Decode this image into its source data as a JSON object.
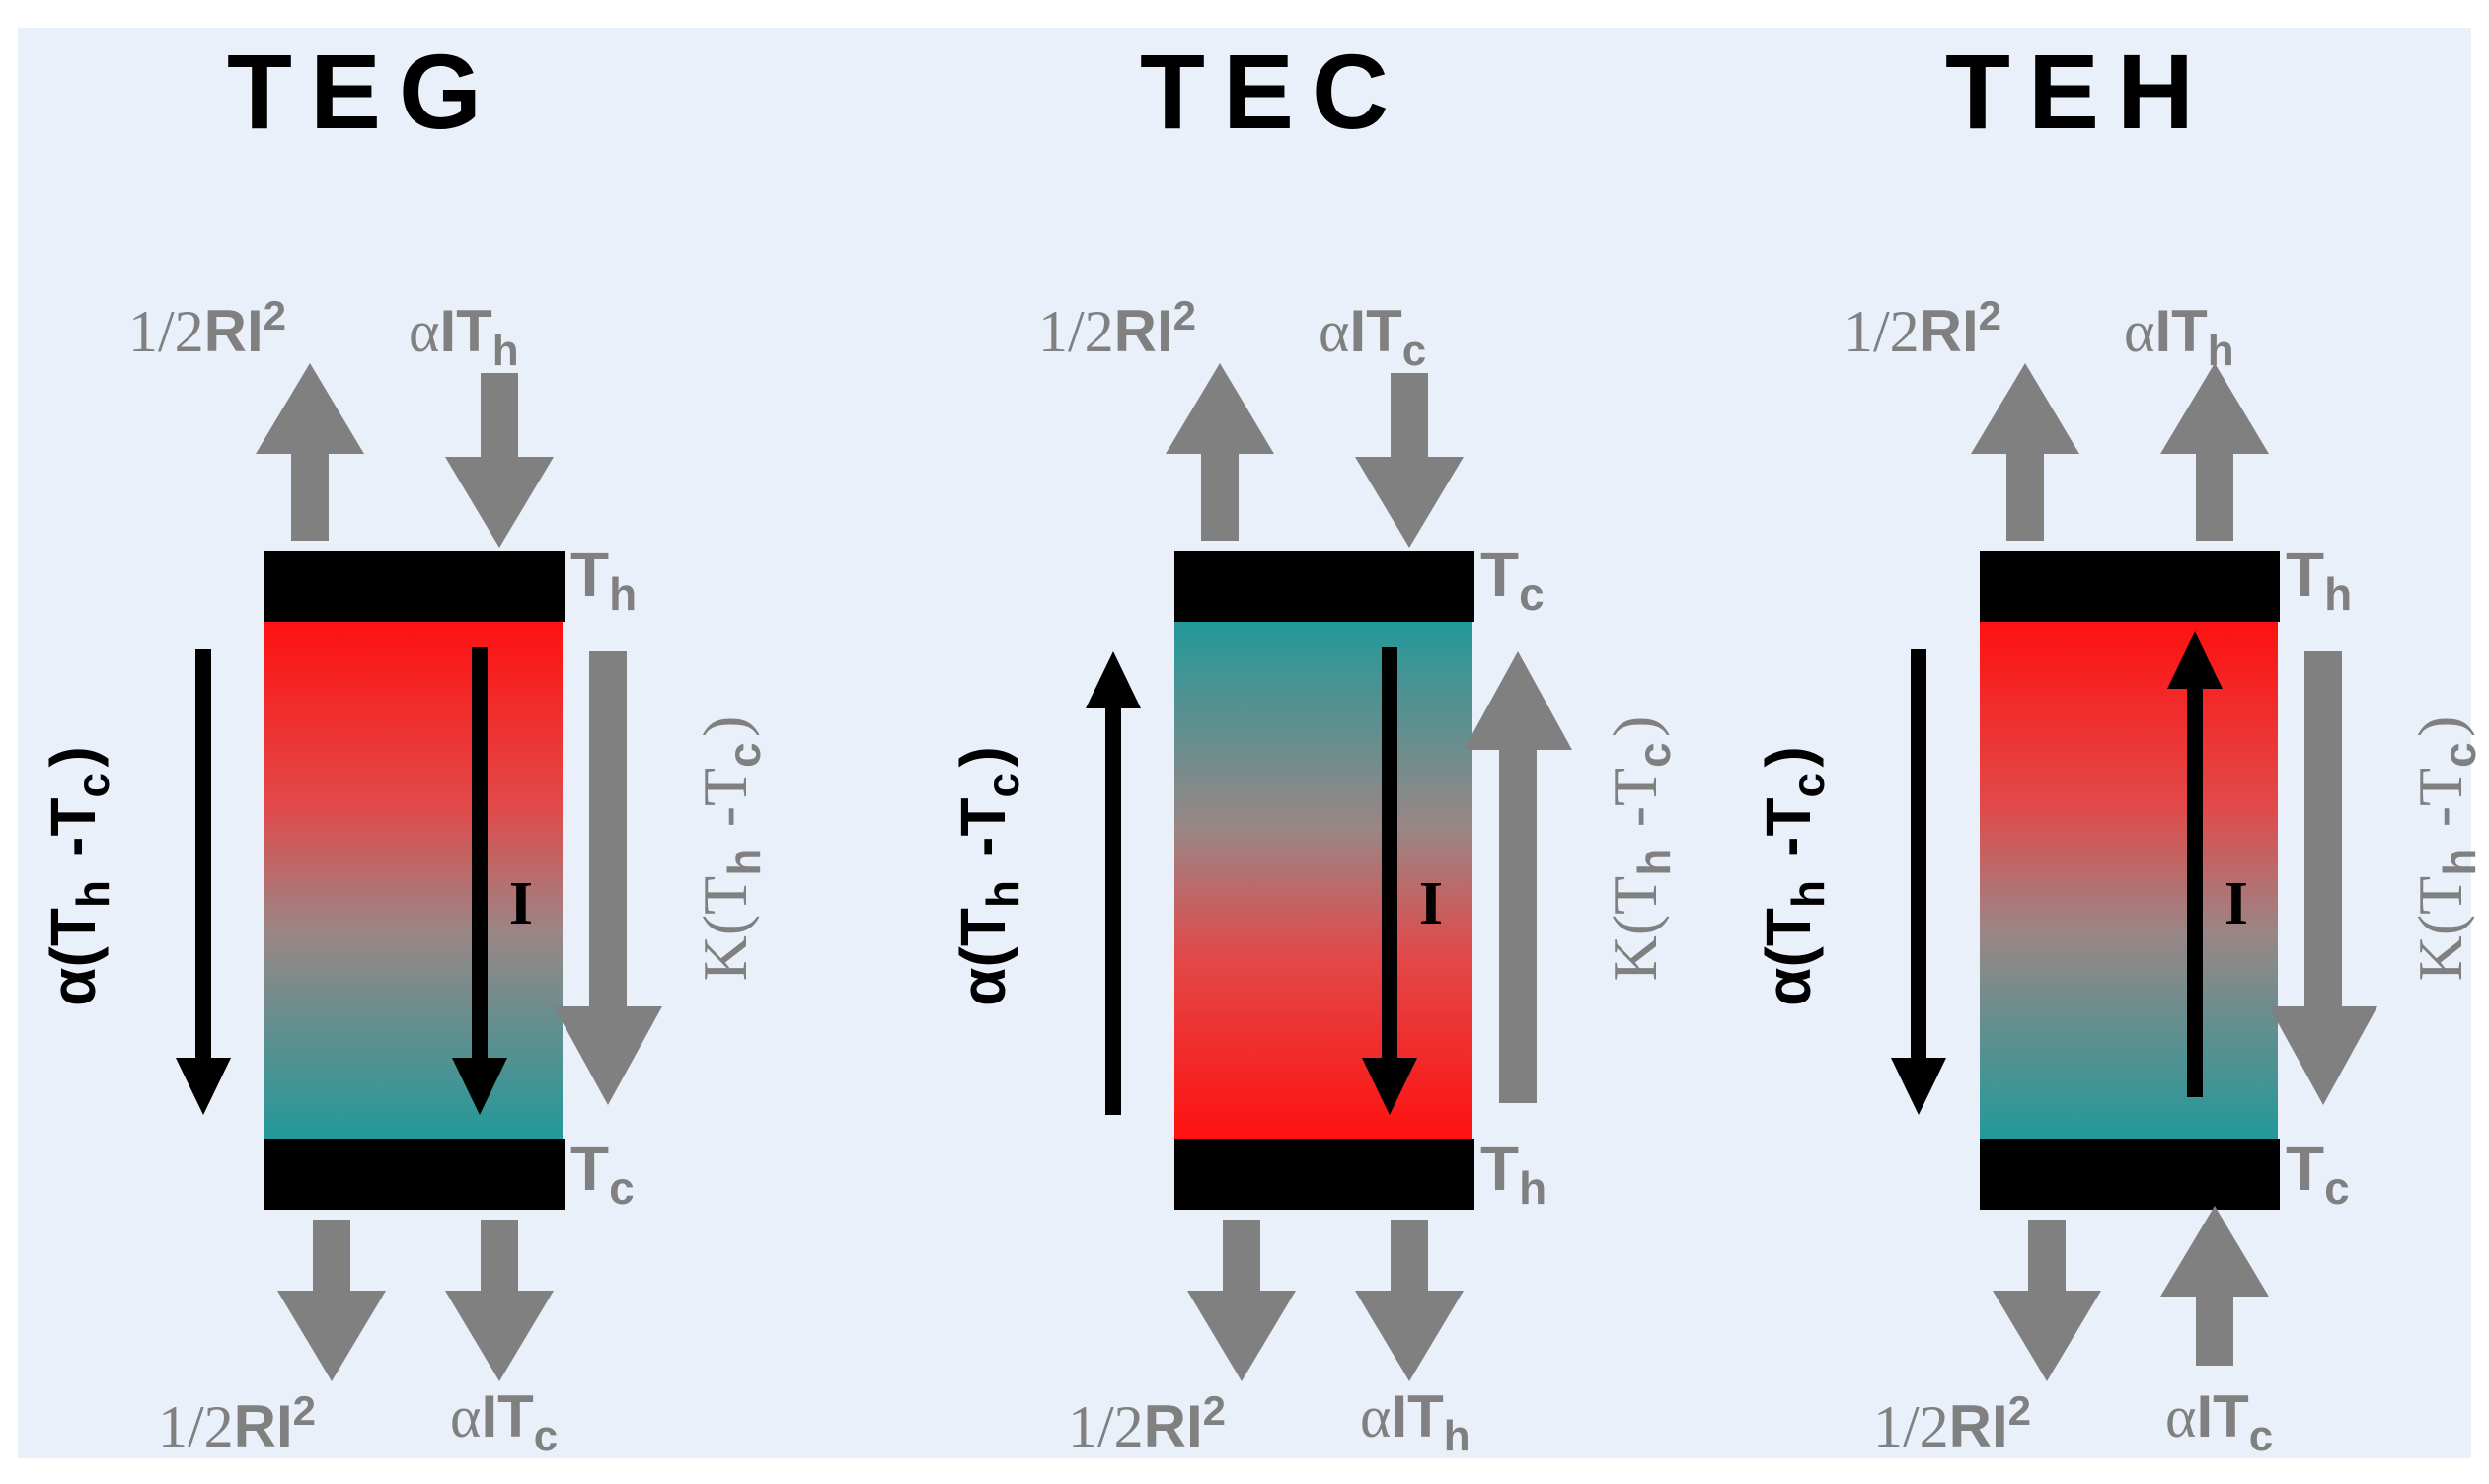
{
  "background": "#eaf0fa",
  "colors": {
    "hot": "#ff1010",
    "cold": "#22999a",
    "mid": "#9a8686",
    "plate": "#000000",
    "heat_arrow": "#808080",
    "signal": "#000000"
  },
  "panels": [
    {
      "title": "TEG",
      "gradient": "hot-top",
      "top_plate": "T_h",
      "bottom_plate": "T_c",
      "top_left": {
        "text": "1/2RI²",
        "direction": "up"
      },
      "top_right": {
        "text": "αIT_h",
        "direction": "down"
      },
      "bottom_left": {
        "text": "1/2RI²",
        "direction": "down"
      },
      "bottom_right": {
        "text": "αIT_c",
        "direction": "down"
      },
      "seebeck_direction": "down",
      "current_direction": "down",
      "conduction_direction": "down"
    },
    {
      "title": "TEC",
      "gradient": "cold-top",
      "top_plate": "T_c",
      "bottom_plate": "T_h",
      "top_left": {
        "text": "1/2RI²",
        "direction": "up"
      },
      "top_right": {
        "text": "αIT_c",
        "direction": "down"
      },
      "bottom_left": {
        "text": "1/2RI²",
        "direction": "down"
      },
      "bottom_right": {
        "text": "αIT_h",
        "direction": "down"
      },
      "seebeck_direction": "up",
      "current_direction": "down",
      "conduction_direction": "up"
    },
    {
      "title": "TEH",
      "gradient": "hot-top",
      "top_plate": "T_h",
      "bottom_plate": "T_c",
      "top_left": {
        "text": "1/2RI²",
        "direction": "up"
      },
      "top_right": {
        "text": "αIT_h",
        "direction": "up"
      },
      "bottom_left": {
        "text": "1/2RI²",
        "direction": "down"
      },
      "bottom_right": {
        "text": "αIT_c",
        "direction": "up"
      },
      "seebeck_direction": "down",
      "current_direction": "up",
      "conduction_direction": "down"
    }
  ],
  "labels": {
    "seebeck": "α(T_h -T_c)",
    "conduction": "K(T_h -T_c)",
    "current": "I",
    "joule": "1/2RI²"
  }
}
